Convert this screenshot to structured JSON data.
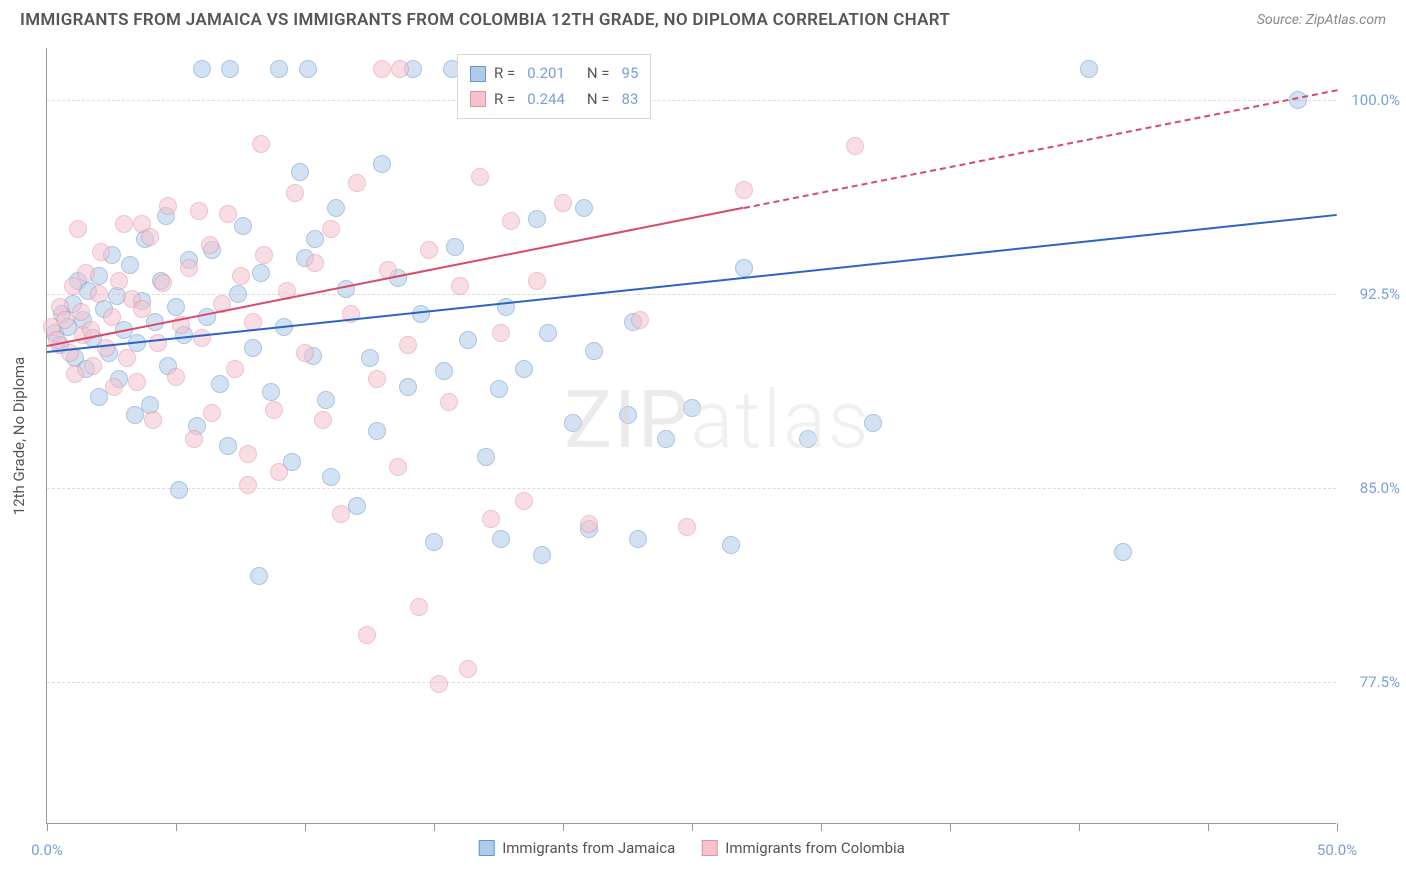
{
  "title": "IMMIGRANTS FROM JAMAICA VS IMMIGRANTS FROM COLOMBIA 12TH GRADE, NO DIPLOMA CORRELATION CHART",
  "source": "Source: ZipAtlas.com",
  "watermark_a": "ZIP",
  "watermark_b": "atlas",
  "chart": {
    "type": "scatter",
    "background_color": "#ffffff",
    "grid_color": "#dcdcdc",
    "axis_color": "#999999",
    "tick_label_color": "#7aa0d8",
    "tick_fontsize": 15,
    "axis_title_fontsize": 15,
    "y_axis_title": "12th Grade, No Diploma",
    "xlim": [
      0,
      50
    ],
    "ylim": [
      72,
      102
    ],
    "y_ticks": [
      77.5,
      85.0,
      92.5,
      100.0
    ],
    "y_tick_labels": [
      "77.5%",
      "85.0%",
      "92.5%",
      "100.0%"
    ],
    "x_ticks": [
      0,
      5,
      10,
      15,
      20,
      25,
      30,
      35,
      40,
      45,
      50
    ],
    "x_tick_labels": {
      "0": "0.0%",
      "50": "50.0%"
    },
    "marker_radius": 9,
    "marker_opacity": 0.55,
    "series": [
      {
        "name": "Immigrants from Jamaica",
        "fill_color": "#aecbea",
        "stroke_color": "#6a95cc",
        "line_color": "#2b64c5",
        "line_width": 2,
        "line_dash_after_x": 50,
        "R": "0.201",
        "N": "95",
        "trend": {
          "x1": 0,
          "y1": 90.3,
          "x2": 50,
          "y2": 95.6
        },
        "points": [
          [
            0.3,
            91.0
          ],
          [
            0.5,
            90.5
          ],
          [
            0.6,
            91.7
          ],
          [
            0.8,
            91.2
          ],
          [
            1.0,
            92.1
          ],
          [
            1.1,
            90.0
          ],
          [
            1.2,
            93.0
          ],
          [
            1.4,
            91.5
          ],
          [
            1.5,
            89.6
          ],
          [
            1.6,
            92.6
          ],
          [
            1.8,
            90.8
          ],
          [
            2.0,
            93.2
          ],
          [
            2.0,
            88.5
          ],
          [
            2.2,
            91.9
          ],
          [
            2.4,
            90.2
          ],
          [
            2.5,
            94.0
          ],
          [
            2.7,
            92.4
          ],
          [
            2.8,
            89.2
          ],
          [
            3.0,
            91.1
          ],
          [
            3.2,
            93.6
          ],
          [
            3.4,
            87.8
          ],
          [
            3.5,
            90.6
          ],
          [
            3.7,
            92.2
          ],
          [
            3.8,
            94.6
          ],
          [
            4.0,
            88.2
          ],
          [
            4.2,
            91.4
          ],
          [
            4.4,
            93.0
          ],
          [
            4.6,
            95.5
          ],
          [
            4.7,
            89.7
          ],
          [
            5.1,
            84.9
          ],
          [
            5.0,
            92.0
          ],
          [
            5.3,
            90.9
          ],
          [
            5.5,
            93.8
          ],
          [
            5.8,
            87.4
          ],
          [
            6.0,
            101.2
          ],
          [
            6.2,
            91.6
          ],
          [
            6.4,
            94.2
          ],
          [
            6.7,
            89.0
          ],
          [
            7.0,
            86.6
          ],
          [
            7.1,
            101.2
          ],
          [
            7.4,
            92.5
          ],
          [
            7.6,
            95.1
          ],
          [
            8.0,
            90.4
          ],
          [
            8.2,
            81.6
          ],
          [
            8.3,
            93.3
          ],
          [
            8.7,
            88.7
          ],
          [
            9.0,
            101.2
          ],
          [
            9.2,
            91.2
          ],
          [
            9.5,
            86.0
          ],
          [
            9.8,
            97.2
          ],
          [
            10.0,
            93.9
          ],
          [
            10.1,
            101.2
          ],
          [
            10.3,
            90.1
          ],
          [
            10.4,
            94.6
          ],
          [
            10.8,
            88.4
          ],
          [
            11.0,
            85.4
          ],
          [
            11.2,
            95.8
          ],
          [
            11.6,
            92.7
          ],
          [
            12.0,
            84.3
          ],
          [
            12.5,
            90.0
          ],
          [
            12.8,
            87.2
          ],
          [
            13.0,
            97.5
          ],
          [
            13.6,
            93.1
          ],
          [
            14.0,
            88.9
          ],
          [
            14.2,
            101.2
          ],
          [
            14.5,
            91.7
          ],
          [
            15.0,
            82.9
          ],
          [
            15.4,
            89.5
          ],
          [
            15.7,
            101.2
          ],
          [
            15.8,
            94.3
          ],
          [
            16.3,
            90.7
          ],
          [
            17.0,
            86.2
          ],
          [
            17.5,
            88.8
          ],
          [
            17.6,
            83.0
          ],
          [
            17.8,
            92.0
          ],
          [
            18.5,
            89.6
          ],
          [
            19.0,
            95.4
          ],
          [
            19.2,
            82.4
          ],
          [
            19.4,
            91.0
          ],
          [
            20.4,
            87.5
          ],
          [
            20.8,
            95.8
          ],
          [
            21.0,
            83.4
          ],
          [
            21.2,
            90.3
          ],
          [
            22.5,
            87.8
          ],
          [
            22.7,
            91.4
          ],
          [
            22.9,
            83.0
          ],
          [
            24.0,
            86.9
          ],
          [
            25.0,
            88.1
          ],
          [
            26.5,
            82.8
          ],
          [
            27.0,
            93.5
          ],
          [
            29.5,
            86.9
          ],
          [
            32.0,
            87.5
          ],
          [
            40.4,
            101.2
          ],
          [
            41.7,
            82.5
          ],
          [
            48.5,
            100.0
          ]
        ]
      },
      {
        "name": "Immigrants from Colombia",
        "fill_color": "#f5c2ce",
        "stroke_color": "#e490a3",
        "line_color": "#d94a6a",
        "line_width": 2,
        "line_dash_after_x": 27,
        "R": "0.244",
        "N": "83",
        "trend": {
          "x1": 0,
          "y1": 90.5,
          "x2": 50,
          "y2": 100.4
        },
        "points": [
          [
            0.2,
            91.2
          ],
          [
            0.4,
            90.7
          ],
          [
            0.5,
            92.0
          ],
          [
            0.7,
            91.5
          ],
          [
            0.9,
            90.2
          ],
          [
            1.0,
            92.8
          ],
          [
            1.1,
            89.4
          ],
          [
            1.3,
            91.8
          ],
          [
            1.4,
            90.9
          ],
          [
            1.5,
            93.3
          ],
          [
            1.2,
            95.0
          ],
          [
            1.7,
            91.1
          ],
          [
            1.8,
            89.7
          ],
          [
            2.0,
            92.5
          ],
          [
            2.1,
            94.1
          ],
          [
            2.3,
            90.4
          ],
          [
            2.5,
            91.6
          ],
          [
            2.6,
            88.9
          ],
          [
            2.8,
            93.0
          ],
          [
            3.0,
            95.2
          ],
          [
            3.7,
            95.2
          ],
          [
            3.1,
            90.0
          ],
          [
            3.3,
            92.3
          ],
          [
            3.5,
            89.1
          ],
          [
            3.7,
            91.9
          ],
          [
            4.0,
            94.7
          ],
          [
            4.1,
            87.6
          ],
          [
            4.3,
            90.6
          ],
          [
            4.5,
            92.9
          ],
          [
            4.7,
            95.9
          ],
          [
            5.9,
            95.7
          ],
          [
            5.0,
            89.3
          ],
          [
            5.2,
            91.3
          ],
          [
            5.5,
            93.5
          ],
          [
            5.7,
            86.9
          ],
          [
            6.0,
            90.8
          ],
          [
            6.3,
            94.4
          ],
          [
            6.4,
            87.9
          ],
          [
            6.8,
            92.1
          ],
          [
            7.0,
            95.6
          ],
          [
            7.3,
            89.6
          ],
          [
            7.5,
            93.2
          ],
          [
            7.8,
            86.3
          ],
          [
            8.0,
            91.4
          ],
          [
            8.3,
            98.3
          ],
          [
            8.4,
            94.0
          ],
          [
            8.8,
            88.0
          ],
          [
            9.0,
            85.6
          ],
          [
            9.3,
            92.6
          ],
          [
            9.6,
            96.4
          ],
          [
            7.8,
            85.1
          ],
          [
            10.0,
            90.2
          ],
          [
            10.4,
            93.7
          ],
          [
            10.7,
            87.6
          ],
          [
            11.0,
            95.0
          ],
          [
            11.4,
            84.0
          ],
          [
            11.8,
            91.7
          ],
          [
            12.0,
            96.8
          ],
          [
            12.4,
            79.3
          ],
          [
            12.8,
            89.2
          ],
          [
            13.0,
            101.2
          ],
          [
            13.2,
            93.4
          ],
          [
            13.6,
            85.8
          ],
          [
            13.7,
            101.2
          ],
          [
            14.0,
            90.5
          ],
          [
            14.4,
            80.4
          ],
          [
            14.8,
            94.2
          ],
          [
            15.2,
            77.4
          ],
          [
            15.6,
            88.3
          ],
          [
            16.0,
            92.8
          ],
          [
            16.3,
            78.0
          ],
          [
            16.8,
            97.0
          ],
          [
            17.2,
            83.8
          ],
          [
            17.6,
            91.0
          ],
          [
            18.0,
            95.3
          ],
          [
            18.5,
            84.5
          ],
          [
            19.0,
            93.0
          ],
          [
            20.0,
            96.0
          ],
          [
            21.0,
            83.6
          ],
          [
            23.0,
            91.5
          ],
          [
            24.8,
            83.5
          ],
          [
            27.0,
            96.5
          ],
          [
            31.3,
            98.2
          ]
        ]
      }
    ]
  },
  "legend_top": [
    {
      "swatch_fill": "#aecbea",
      "swatch_stroke": "#6a95cc",
      "r_label": "R  =",
      "r_val": "0.201",
      "n_label": "N  =",
      "n_val": "95"
    },
    {
      "swatch_fill": "#f5c2ce",
      "swatch_stroke": "#e490a3",
      "r_label": "R  =",
      "r_val": "0.244",
      "n_label": "N  =",
      "n_val": "83"
    }
  ],
  "legend_bottom": [
    {
      "swatch_fill": "#aecbea",
      "swatch_stroke": "#6a95cc",
      "label": "Immigrants from Jamaica"
    },
    {
      "swatch_fill": "#f5c2ce",
      "swatch_stroke": "#e490a3",
      "label": "Immigrants from Colombia"
    }
  ]
}
